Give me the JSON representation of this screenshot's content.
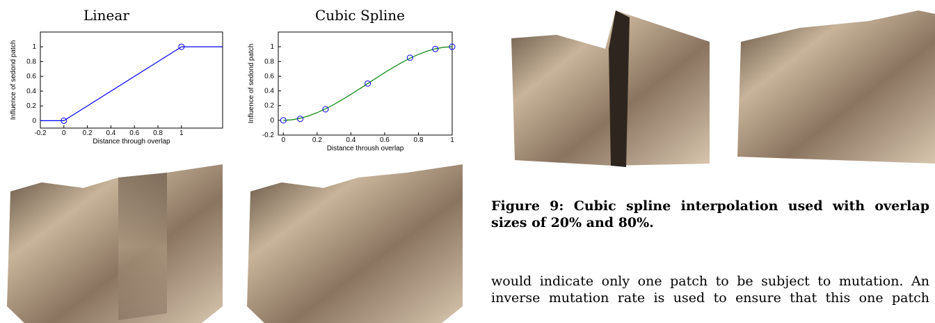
{
  "chart_data": [
    {
      "type": "line",
      "title": "Linear",
      "x_label": "Distance through overlap",
      "y_label": "Influence of sedond patch",
      "xlim": [
        -0.2,
        1.35
      ],
      "ylim": [
        -0.1,
        1.2
      ],
      "xticks": [
        -0.2,
        0,
        0.2,
        0.4,
        0.6,
        0.8,
        1
      ],
      "yticks": [
        0,
        0.2,
        0.4,
        0.6,
        0.8,
        1
      ],
      "series": [
        {
          "color": "#0000ff",
          "x": [
            -0.2,
            0,
            1,
            1.35
          ],
          "values": [
            0,
            0,
            1,
            1
          ]
        },
        {
          "color": "#0000ff",
          "marker": "circle",
          "x": [
            0,
            1
          ],
          "values": [
            0,
            1
          ]
        }
      ]
    },
    {
      "type": "line",
      "title": "Cubic Spline",
      "x_label": "Distance throush overlap",
      "y_label": "Influence of sedond patch",
      "xlim": [
        -0.03,
        1
      ],
      "ylim": [
        -0.2,
        1.2
      ],
      "xticks": [
        0,
        0.2,
        0.4,
        0.6,
        0.8,
        1
      ],
      "yticks": [
        -0.2,
        0,
        0.2,
        0.4,
        0.6,
        0.8,
        1
      ],
      "series": [
        {
          "color": "#008000",
          "x": [
            0,
            0.05,
            0.1,
            0.15,
            0.2,
            0.25,
            0.3,
            0.35,
            0.4,
            0.45,
            0.5,
            0.55,
            0.6,
            0.65,
            0.7,
            0.75,
            0.8,
            0.85,
            0.9,
            0.95,
            1
          ],
          "values": [
            0,
            0.007,
            0.028,
            0.061,
            0.104,
            0.156,
            0.216,
            0.282,
            0.352,
            0.425,
            0.5,
            0.575,
            0.648,
            0.718,
            0.784,
            0.844,
            0.896,
            0.939,
            0.972,
            0.993,
            1
          ]
        },
        {
          "color": "#0000ff",
          "marker": "circle",
          "x": [
            0,
            0.1,
            0.25,
            0.5,
            0.75,
            0.9,
            1
          ],
          "values": [
            0,
            0.02,
            0.15,
            0.5,
            0.85,
            0.97,
            1
          ]
        }
      ]
    }
  ],
  "caption": "Figure 9: Cubic spline interpolation used with overlap sizes of 20% and 80%.",
  "body_lines": [
    "would indicate only one patch to be subject to mutation. An",
    "inverse mutation rate is used to ensure that this one patch"
  ]
}
